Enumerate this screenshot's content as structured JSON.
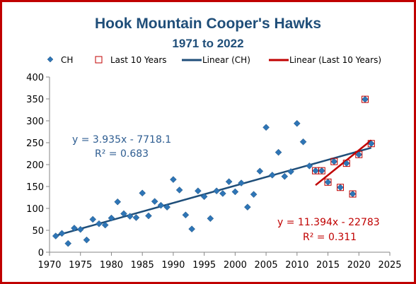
{
  "chart_data": {
    "type": "scatter",
    "title": "Hook Mountain Cooper's Hawks",
    "subtitle": "1971 to 2022",
    "xlim": [
      1970,
      2025
    ],
    "ylim": [
      0,
      400
    ],
    "x_ticks": [
      1970,
      1975,
      1980,
      1985,
      1990,
      1995,
      2000,
      2005,
      2010,
      2015,
      2020,
      2025
    ],
    "y_ticks": [
      0,
      50,
      100,
      150,
      200,
      250,
      300,
      350,
      400
    ],
    "grid": false,
    "legend_position": "top",
    "series": [
      {
        "name": "CH",
        "marker": "diamond",
        "color": "#2e75b6",
        "x": [
          1971,
          1972,
          1973,
          1974,
          1975,
          1976,
          1977,
          1978,
          1979,
          1980,
          1981,
          1982,
          1983,
          1984,
          1985,
          1986,
          1987,
          1988,
          1989,
          1990,
          1991,
          1992,
          1993,
          1994,
          1995,
          1996,
          1997,
          1998,
          1999,
          2000,
          2001,
          2002,
          2003,
          2004,
          2005,
          2006,
          2007,
          2008,
          2009,
          2010,
          2011,
          2012,
          2013,
          2014,
          2015,
          2016,
          2017,
          2018,
          2019,
          2020,
          2021,
          2022
        ],
        "y": [
          37,
          43,
          20,
          55,
          52,
          28,
          75,
          65,
          62,
          78,
          115,
          88,
          82,
          79,
          135,
          83,
          116,
          107,
          103,
          166,
          142,
          85,
          53,
          140,
          127,
          77,
          140,
          134,
          161,
          138,
          158,
          103,
          132,
          185,
          285,
          176,
          228,
          173,
          184,
          294,
          252,
          197,
          186,
          186,
          160,
          207,
          148,
          203,
          133,
          223,
          349,
          248
        ]
      },
      {
        "name": "Last 10 Years",
        "marker": "square-open",
        "color": "#c00000",
        "x": [
          2013,
          2014,
          2015,
          2016,
          2017,
          2018,
          2019,
          2020,
          2021,
          2022
        ],
        "y": [
          186,
          186,
          160,
          207,
          148,
          203,
          133,
          223,
          349,
          248
        ]
      },
      {
        "name": "Linear (CH)",
        "type": "trendline",
        "color": "#1f4e79",
        "slope": 3.935,
        "intercept": -7718.1,
        "x_range": [
          1971,
          2022
        ]
      },
      {
        "name": "Linear (Last 10 Years)",
        "type": "trendline",
        "color": "#c00000",
        "slope": 11.394,
        "intercept": -22783,
        "x_range": [
          2013,
          2022
        ]
      }
    ],
    "annotations": [
      {
        "line1": "y = 3.935x - 7718.1",
        "line2": "R² = 0.683",
        "color": "#2e5d91"
      },
      {
        "line1": "y = 11.394x - 22783",
        "line2": "R² = 0.311",
        "color": "#c00000"
      }
    ]
  }
}
